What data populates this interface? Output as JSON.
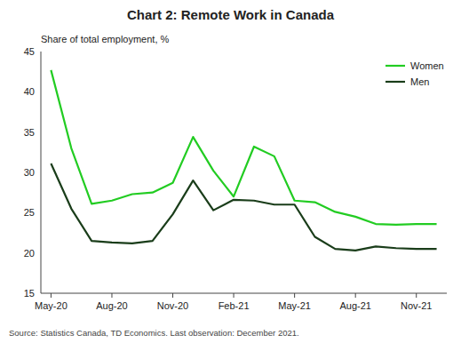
{
  "chart_data": {
    "type": "line",
    "title": "Chart 2: Remote Work in Canada",
    "ylabel": "Share of total employment, %",
    "source": "Source: Statistics Canada, TD Economics.  Last observation: December 2021.",
    "categories": [
      "May-20",
      null,
      null,
      "Aug-20",
      null,
      null,
      "Nov-20",
      null,
      null,
      "Feb-21",
      null,
      null,
      "May-21",
      null,
      null,
      "Aug-21",
      null,
      null,
      "Nov-21",
      null
    ],
    "series": [
      {
        "name": "Women",
        "color": "#22cc22",
        "values": [
          42.7,
          33.0,
          26.1,
          26.5,
          27.3,
          27.5,
          28.7,
          34.4,
          30.2,
          27.0,
          33.2,
          32.0,
          26.5,
          26.3,
          25.1,
          24.5,
          23.6,
          23.5,
          23.6,
          23.6
        ]
      },
      {
        "name": "Men",
        "color": "#1a3d1a",
        "values": [
          31.1,
          25.5,
          21.5,
          21.3,
          21.2,
          21.5,
          24.8,
          29.0,
          25.3,
          26.6,
          26.5,
          26.0,
          26.0,
          22.0,
          20.5,
          20.3,
          20.8,
          20.6,
          20.5,
          20.5
        ]
      }
    ],
    "ylim": [
      15,
      45
    ],
    "yticks": [
      15,
      20,
      25,
      30,
      35,
      40,
      45
    ],
    "grid": false,
    "legend": "upper right"
  }
}
